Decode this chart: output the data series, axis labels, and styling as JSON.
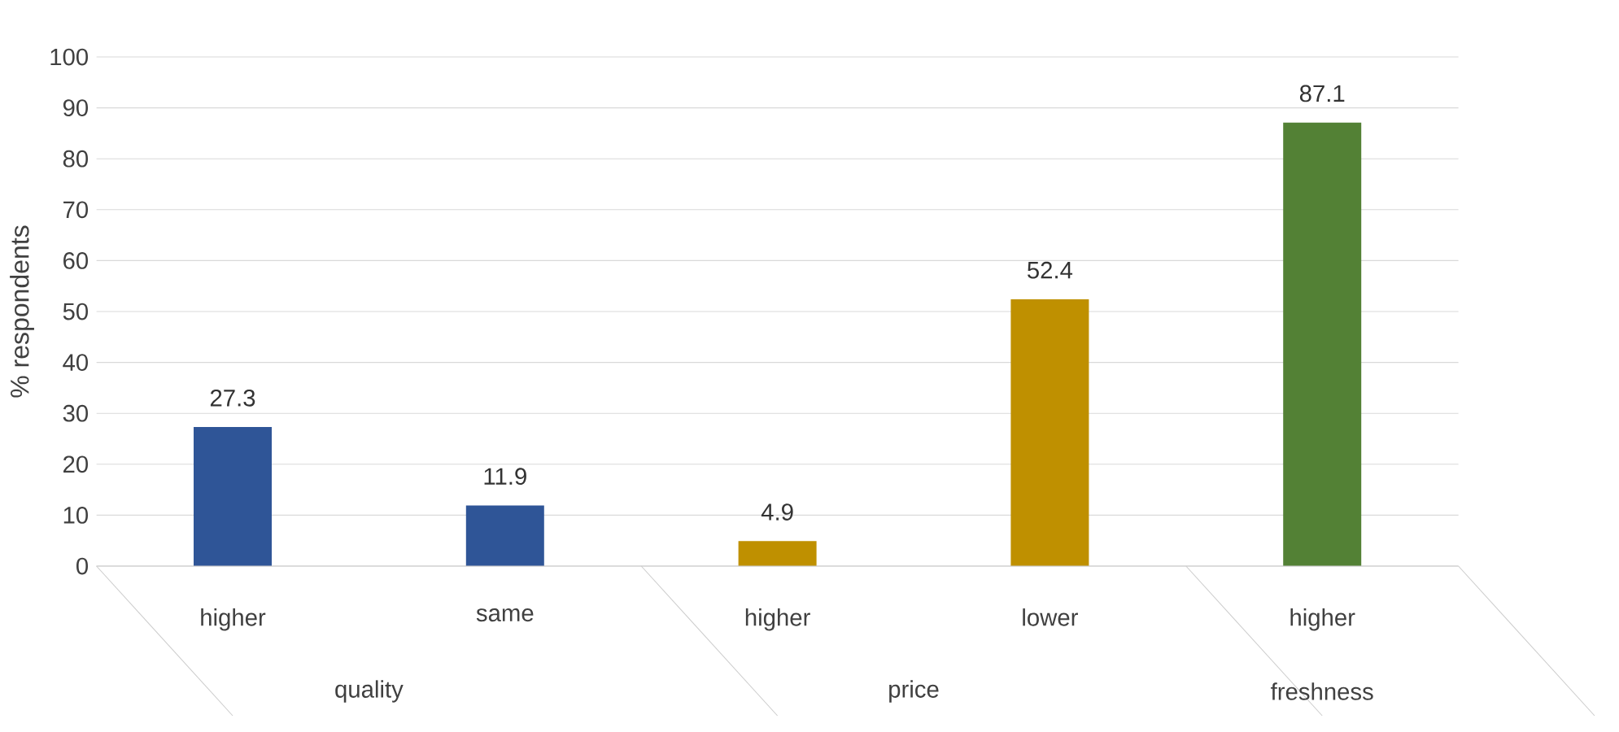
{
  "chart_data": {
    "type": "bar",
    "ylabel": "% respondents",
    "categories": [
      "higher",
      "same",
      "higher",
      "lower",
      "higher"
    ],
    "values": [
      27.3,
      11.9,
      4.9,
      52.4,
      87.1
    ],
    "colors": [
      "#2f5597",
      "#2f5597",
      "#bf9000",
      "#bf9000",
      "#538135"
    ],
    "annotations": [
      "quality",
      "price",
      "freshness"
    ],
    "ylim": [
      0,
      100
    ],
    "yticks": [
      0,
      10,
      20,
      30,
      40,
      50,
      60,
      70,
      80,
      90,
      100
    ],
    "grid": "y",
    "data_labels": true
  }
}
